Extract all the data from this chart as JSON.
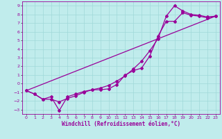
{
  "xlabel": "Windchill (Refroidissement éolien,°C)",
  "bg_color": "#c0ecec",
  "line_color": "#990099",
  "grid_color": "#a0d8d8",
  "xlim": [
    -0.5,
    23.5
  ],
  "ylim": [
    -3.5,
    9.5
  ],
  "xticks": [
    0,
    1,
    2,
    3,
    4,
    5,
    6,
    7,
    8,
    9,
    10,
    11,
    12,
    13,
    14,
    15,
    16,
    17,
    18,
    19,
    20,
    21,
    22,
    23
  ],
  "yticks": [
    -3,
    -2,
    -1,
    0,
    1,
    2,
    3,
    4,
    5,
    6,
    7,
    8,
    9
  ],
  "line1_x": [
    0,
    1,
    2,
    3,
    4,
    5,
    6,
    7,
    8,
    9,
    10,
    11,
    12,
    13,
    14,
    15,
    16,
    17,
    18,
    19,
    20,
    21,
    22,
    23
  ],
  "line1_y": [
    -0.8,
    -1.2,
    -1.8,
    -1.5,
    -3.1,
    -1.5,
    -1.2,
    -0.9,
    -0.7,
    -0.7,
    -0.6,
    -0.1,
    1.0,
    1.5,
    1.8,
    3.2,
    5.5,
    7.2,
    7.2,
    8.2,
    7.9,
    7.8,
    7.6,
    7.8
  ],
  "line2_x": [
    0,
    1,
    2,
    3,
    4,
    5,
    6,
    7,
    8,
    9,
    10,
    11,
    12,
    13,
    14,
    15,
    16,
    17,
    18,
    19,
    20,
    21,
    22,
    23
  ],
  "line2_y": [
    -0.8,
    -1.2,
    -1.8,
    -1.8,
    -2.1,
    -1.7,
    -1.4,
    -1.0,
    -0.7,
    -0.5,
    -0.2,
    0.3,
    0.9,
    1.7,
    2.6,
    3.8,
    5.2,
    7.8,
    9.0,
    8.4,
    8.0,
    7.9,
    7.7,
    7.8
  ],
  "line3_x": [
    0,
    23
  ],
  "line3_y": [
    -0.8,
    7.8
  ],
  "markersize": 2,
  "linewidth": 0.9,
  "tick_fontsize": 4.5,
  "xlabel_fontsize": 5.5
}
